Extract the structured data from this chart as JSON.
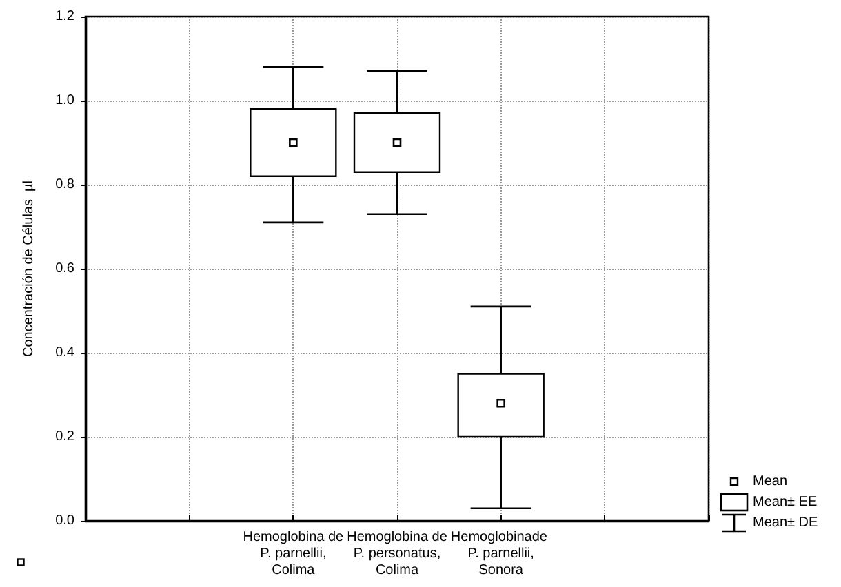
{
  "chart_data": {
    "type": "box",
    "ylabel": "Concentración de Células  µl",
    "categories": [
      null,
      null,
      "Hemoglobina de P. parnellii, Colima",
      "Hemoglobina de P. personatus, Colima",
      "Hemoglobinade  P. parnellii, Sonora",
      null,
      null
    ],
    "boxes": [
      null,
      null,
      {
        "low": 0.71,
        "q1": 0.82,
        "q3": 0.98,
        "high": 1.08,
        "mean": 0.9
      },
      {
        "low": 0.73,
        "q1": 0.83,
        "q3": 0.97,
        "high": 1.07,
        "mean": 0.9
      },
      {
        "low": 0.03,
        "q1": 0.2,
        "q3": 0.35,
        "high": 0.51,
        "mean": 0.28
      },
      null,
      null
    ],
    "annotations": [
      "Mean",
      "Mean± EE",
      "Mean± DE"
    ],
    "ylim": [
      0,
      1.2
    ],
    "yticks": [
      {
        "value": 0,
        "label": "0.0"
      },
      {
        "value": 0.2,
        "label": "0.2"
      },
      {
        "value": 0.4,
        "label": "0.4"
      },
      {
        "value": 0.6,
        "label": "0.6"
      },
      {
        "value": 0.8,
        "label": "0.8"
      },
      {
        "value": 1,
        "label": "1.0"
      },
      {
        "value": 1.2,
        "label": "1.2"
      }
    ],
    "grid": true
  }
}
